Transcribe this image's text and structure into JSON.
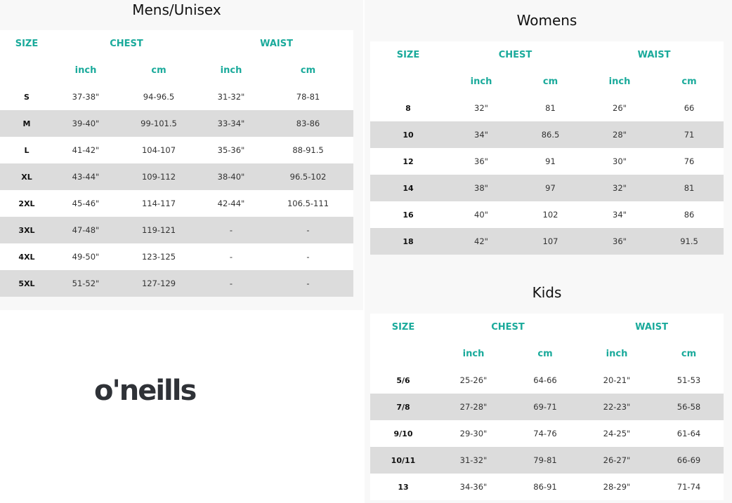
{
  "headers": {
    "size": "SIZE",
    "chest": "CHEST",
    "waist": "WAIST",
    "inch": "inch",
    "cm": "cm"
  },
  "colors": {
    "accent": "#1aaa9b",
    "stripe": "#dcdcdc",
    "panel": "#f8f8f8"
  },
  "logo": "o'neills",
  "tables": {
    "mens": {
      "title": "Mens/Unisex",
      "rows": [
        [
          "S",
          "37-38\"",
          "94-96.5",
          "31-32\"",
          "78-81"
        ],
        [
          "M",
          "39-40\"",
          "99-101.5",
          "33-34\"",
          "83-86"
        ],
        [
          "L",
          "41-42\"",
          "104-107",
          "35-36\"",
          "88-91.5"
        ],
        [
          "XL",
          "43-44\"",
          "109-112",
          "38-40\"",
          "96.5-102"
        ],
        [
          "2XL",
          "45-46\"",
          "114-117",
          "42-44\"",
          "106.5-111"
        ],
        [
          "3XL",
          "47-48\"",
          "119-121",
          "-",
          "-"
        ],
        [
          "4XL",
          "49-50\"",
          "123-125",
          "-",
          "-"
        ],
        [
          "5XL",
          "51-52\"",
          "127-129",
          "-",
          "-"
        ]
      ]
    },
    "womens": {
      "title": "Womens",
      "rows": [
        [
          "8",
          "32\"",
          "81",
          "26\"",
          "66"
        ],
        [
          "10",
          "34\"",
          "86.5",
          "28\"",
          "71"
        ],
        [
          "12",
          "36\"",
          "91",
          "30\"",
          "76"
        ],
        [
          "14",
          "38\"",
          "97",
          "32\"",
          "81"
        ],
        [
          "16",
          "40\"",
          "102",
          "34\"",
          "86"
        ],
        [
          "18",
          "42\"",
          "107",
          "36\"",
          "91.5"
        ]
      ]
    },
    "kids": {
      "title": "Kids",
      "rows": [
        [
          "5/6",
          "25-26\"",
          "64-66",
          "20-21\"",
          "51-53"
        ],
        [
          "7/8",
          "27-28\"",
          "69-71",
          "22-23\"",
          "56-58"
        ],
        [
          "9/10",
          "29-30\"",
          "74-76",
          "24-25\"",
          "61-64"
        ],
        [
          "10/11",
          "31-32\"",
          "79-81",
          "26-27\"",
          "66-69"
        ],
        [
          "13",
          "34-36\"",
          "86-91",
          "28-29\"",
          "71-74"
        ]
      ]
    }
  }
}
